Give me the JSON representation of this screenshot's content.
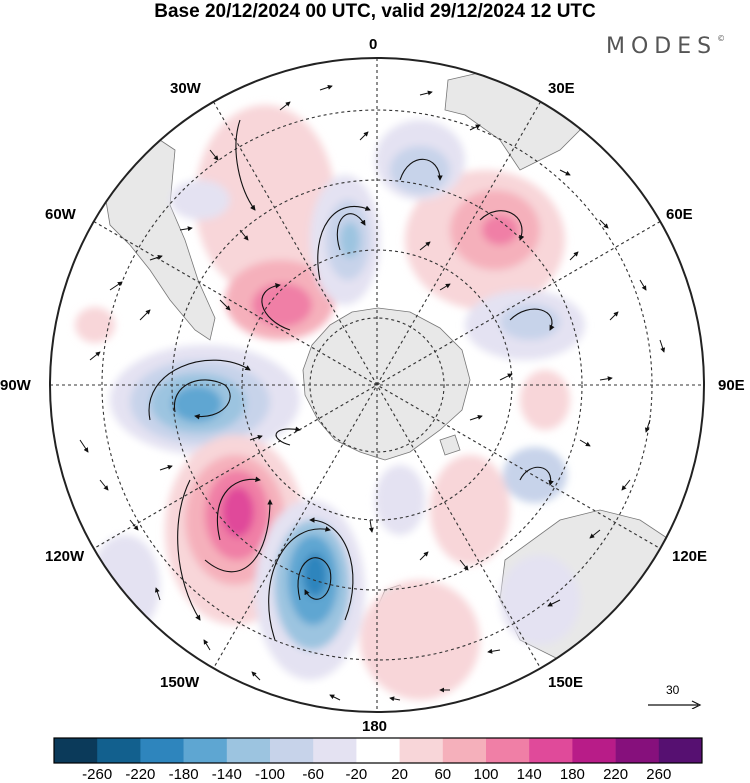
{
  "title": "Base 20/12/2024 00 UTC, valid 29/12/2024 12 UTC",
  "brand": {
    "name": "MODES",
    "mark": "©"
  },
  "map": {
    "projection": "south-polar-stereographic",
    "longitude_labels": {
      "top": "0",
      "top_right": "30E",
      "right_upper": "60E",
      "right": "90E",
      "right_lower": "120E",
      "bottom_right": "150E",
      "bottom": "180",
      "bottom_left": "150W",
      "left_lower": "120W",
      "left": "90W",
      "left_upper": "60W",
      "top_left": "30W"
    },
    "reference_vector": {
      "value": "30"
    },
    "anomaly_centers": [
      {
        "sign": "negative",
        "approx_value": -200,
        "region": "Bellingshausen/Amundsen Sea, ~95W"
      },
      {
        "sign": "negative",
        "approx_value": -200,
        "region": "South Pacific, ~165W"
      },
      {
        "sign": "positive",
        "approx_value": 180,
        "region": "South Pacific, ~125W"
      },
      {
        "sign": "positive",
        "approx_value": 140,
        "region": "South Atlantic, ~50W"
      },
      {
        "sign": "positive",
        "approx_value": 120,
        "region": "Indian Ocean, ~40E"
      },
      {
        "sign": "negative",
        "approx_value": -80,
        "region": "Atlantic sector, ~15W"
      },
      {
        "sign": "negative",
        "approx_value": -80,
        "region": "Atlantic sector, ~10E"
      },
      {
        "sign": "negative",
        "approx_value": -60,
        "region": "Indian Ocean, ~70E"
      }
    ]
  },
  "colorbar": {
    "ticks": [
      "-260",
      "-220",
      "-180",
      "-140",
      "-100",
      "-60",
      "-20",
      "20",
      "60",
      "100",
      "140",
      "180",
      "220",
      "260"
    ],
    "colors": [
      "#0b3a5a",
      "#12608e",
      "#2e85bd",
      "#5ea6d2",
      "#9cc4e0",
      "#c7d3ea",
      "#e4e2f2",
      "#ffffff",
      "#f8d6d9",
      "#f5b0bb",
      "#f07fa6",
      "#e04a9a",
      "#b81c88",
      "#86107c",
      "#561071"
    ]
  }
}
